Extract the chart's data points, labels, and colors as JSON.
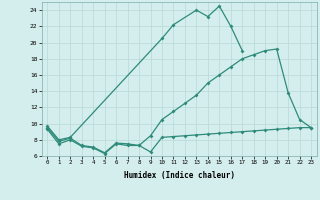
{
  "xlabel": "Humidex (Indice chaleur)",
  "x": [
    0,
    1,
    2,
    3,
    4,
    5,
    6,
    7,
    8,
    9,
    10,
    11,
    12,
    13,
    14,
    15,
    16,
    17,
    18,
    19,
    20,
    21,
    22,
    23
  ],
  "y_top": [
    9.7,
    8.0,
    8.3,
    null,
    null,
    null,
    null,
    null,
    null,
    null,
    20.5,
    22.2,
    null,
    24.0,
    23.2,
    24.5,
    22.0,
    19.0,
    null,
    null,
    null,
    null,
    null,
    null
  ],
  "y_mid": [
    9.5,
    7.8,
    8.2,
    7.3,
    7.1,
    6.4,
    7.6,
    7.5,
    7.3,
    8.5,
    10.5,
    11.5,
    12.5,
    13.5,
    15.0,
    16.0,
    17.0,
    18.0,
    18.5,
    19.0,
    19.2,
    13.8,
    10.5,
    9.5
  ],
  "y_bot": [
    9.3,
    7.5,
    8.0,
    7.2,
    7.0,
    6.3,
    7.5,
    7.3,
    7.3,
    6.5,
    8.3,
    8.4,
    8.5,
    8.6,
    8.7,
    8.8,
    8.9,
    9.0,
    9.1,
    9.2,
    9.3,
    9.4,
    9.5,
    9.5
  ],
  "color": "#2e8b7a",
  "bg_color": "#d4eeed",
  "grid_color": "#b8d8d6",
  "ylim": [
    6,
    25
  ],
  "yticks": [
    6,
    8,
    10,
    12,
    14,
    16,
    18,
    20,
    22,
    24
  ],
  "xlim": [
    -0.5,
    23.5
  ]
}
